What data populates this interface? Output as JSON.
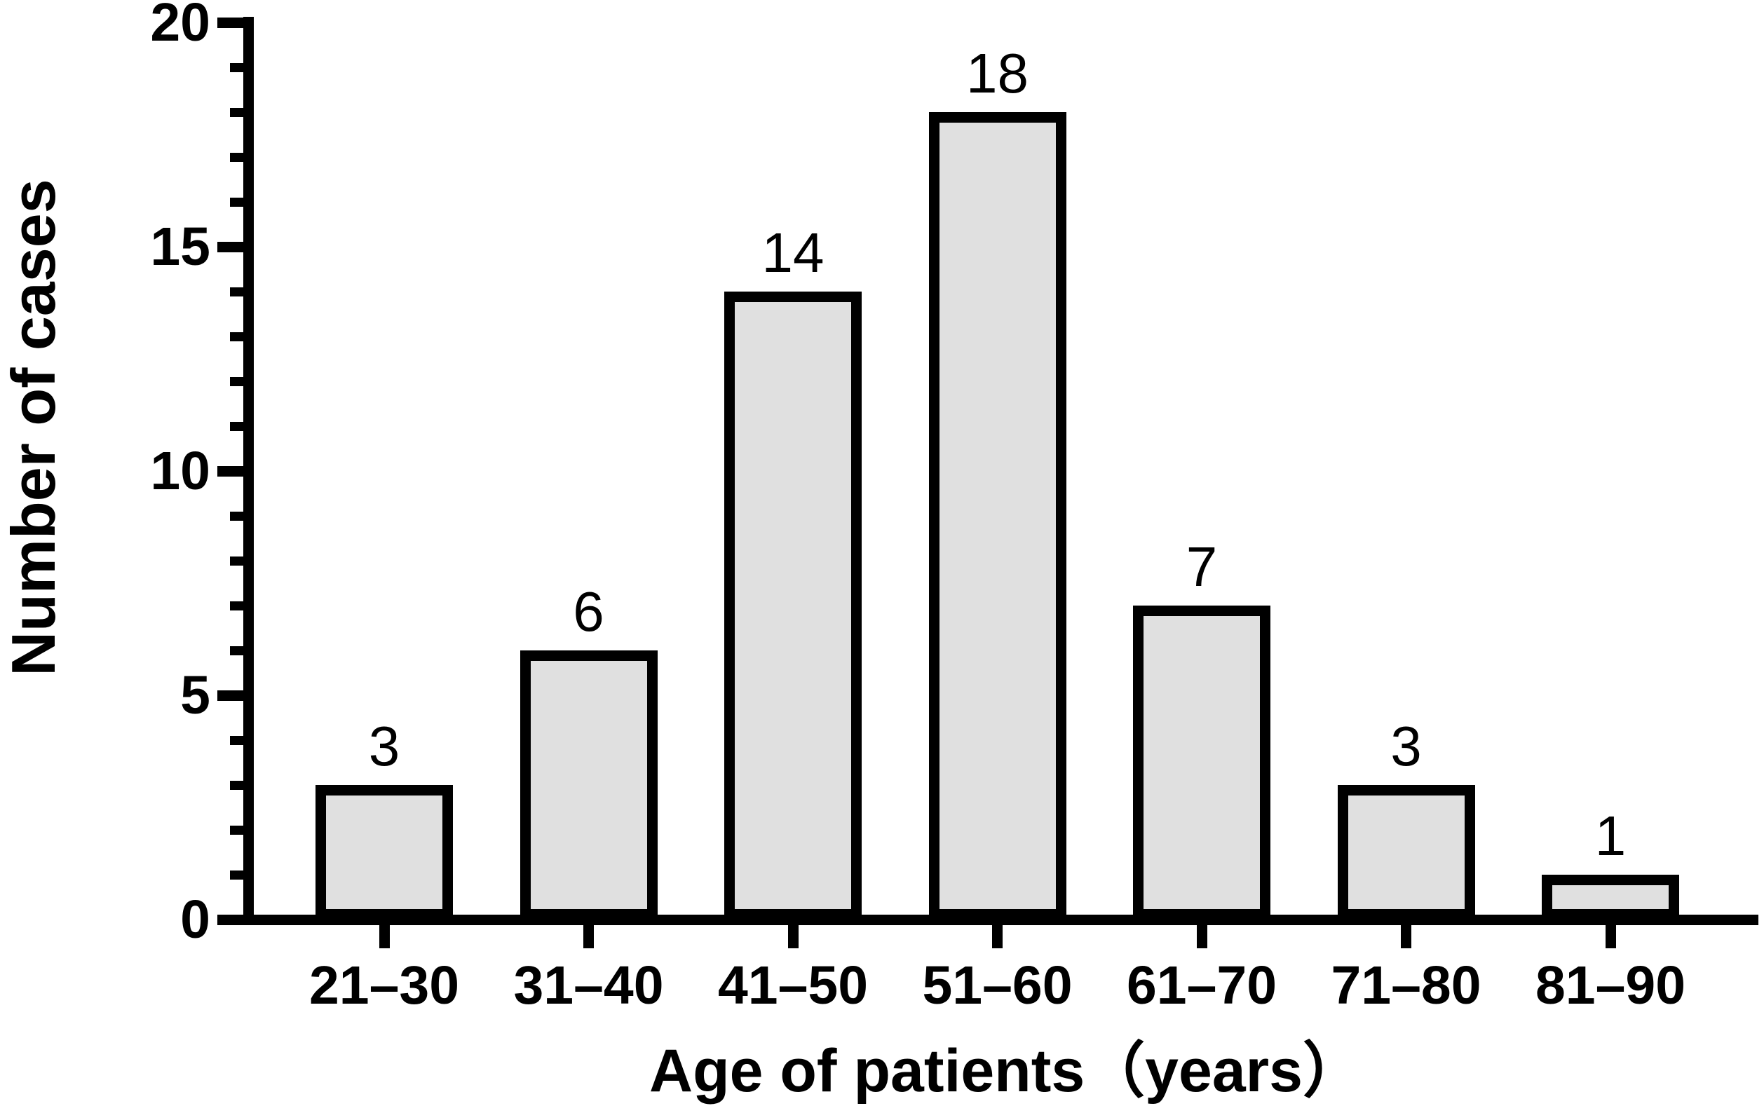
{
  "chart_data": {
    "type": "bar",
    "title": "",
    "categories": [
      "21–30",
      "31–40",
      "41–50",
      "51–60",
      "61–70",
      "71–80",
      "81–90"
    ],
    "values": [
      3,
      6,
      14,
      18,
      7,
      3,
      1
    ],
    "value_labels": [
      "3",
      "6",
      "14",
      "18",
      "7",
      "3",
      "1"
    ],
    "xlabel": "Age of patients（years）",
    "ylabel": "Number of cases",
    "ylim": [
      0,
      20
    ],
    "yticks": [
      0,
      5,
      10,
      15,
      20
    ],
    "ytick_labels": [
      "0",
      "5",
      "10",
      "15",
      "20"
    ],
    "minor_tick_interval": 1,
    "grid": "off",
    "legend": "none",
    "bar_fill_color": "#e0e0e0",
    "bar_border_color": "#000000",
    "axis_color": "#000000",
    "background_color": "#ffffff"
  }
}
